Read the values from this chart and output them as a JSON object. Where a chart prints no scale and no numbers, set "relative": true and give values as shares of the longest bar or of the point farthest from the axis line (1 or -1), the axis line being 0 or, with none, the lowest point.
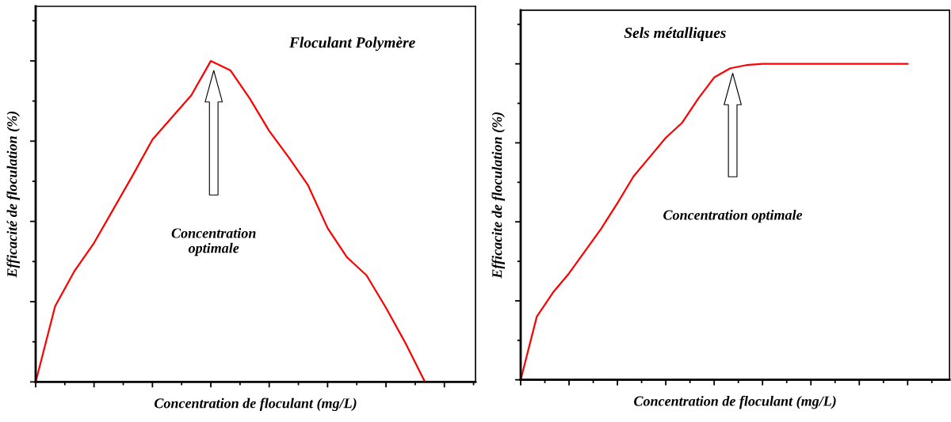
{
  "chart_data": [
    {
      "type": "line",
      "title": "Floculant Polymère",
      "xlabel": "Concentration de floculant (mg/L)",
      "ylabel": "Efficacité de floculation (%)",
      "relative": true,
      "annotations": [
        "Concentration\noptimale"
      ],
      "categories": [
        null,
        null,
        null,
        null,
        null,
        null,
        null,
        null,
        null,
        null,
        null,
        null,
        null,
        null,
        null,
        null,
        null,
        null,
        null,
        null,
        null,
        null,
        null
      ],
      "series": [
        {
          "color": "#ff0000",
          "values": [
            0,
            0.236,
            0.346,
            0.433,
            0.539,
            0.645,
            0.755,
            0.824,
            0.893,
            1.0,
            0.971,
            0.883,
            0.782,
            0.7,
            0.612,
            0.479,
            0.388,
            0.332,
            0.231,
            0.121,
            0,
            null,
            null
          ]
        }
      ],
      "grid": false,
      "legend": false,
      "marker": "none",
      "line_style": "solid"
    },
    {
      "type": "line",
      "title": "Sels métalliques",
      "xlabel": "Concentration de floculant (mg/L)",
      "ylabel": "Efficacite de floculation (%)",
      "relative": true,
      "annotations": [
        "Concentration optimale"
      ],
      "categories": [
        null,
        null,
        null,
        null,
        null,
        null,
        null,
        null,
        null,
        null,
        null,
        null,
        null,
        null,
        null,
        null,
        null,
        null,
        null,
        null,
        null,
        null,
        null,
        null,
        null,
        null,
        null
      ],
      "series": [
        {
          "color": "#ff0000",
          "values": [
            0,
            0.2,
            0.276,
            0.337,
            0.408,
            0.479,
            0.559,
            0.644,
            0.705,
            0.766,
            0.813,
            0.889,
            0.957,
            0.986,
            0.996,
            1.0,
            1.0,
            1.0,
            1.0,
            1.0,
            1.0,
            1.0,
            1.0,
            1.0,
            1.0,
            null,
            null
          ]
        }
      ],
      "grid": false,
      "legend": false,
      "marker": "none",
      "line_style": "solid"
    }
  ]
}
